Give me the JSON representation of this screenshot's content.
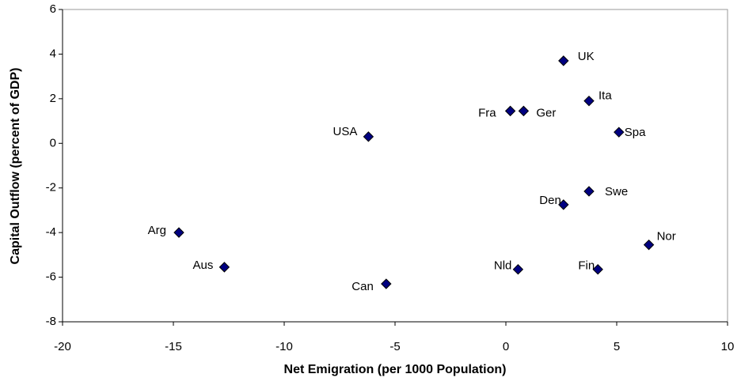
{
  "chart_data": {
    "type": "scatter",
    "xlabel": "Net Emigration (per 1000 Population)",
    "ylabel": "Capital Outflow (percent of GDP)",
    "labels": [
      "UK",
      "Ita",
      "Fra",
      "Ger",
      "Spa",
      "USA",
      "Swe",
      "Den",
      "Arg",
      "Nor",
      "Aus",
      "Nld",
      "Fin",
      "Can"
    ],
    "x": [
      2.6,
      3.75,
      0.2,
      0.8,
      5.1,
      -6.2,
      3.75,
      2.6,
      -14.75,
      6.45,
      -12.7,
      0.55,
      4.15,
      -5.4
    ],
    "values": [
      3.7,
      1.9,
      1.45,
      1.45,
      0.5,
      0.3,
      -2.15,
      -2.75,
      -4.0,
      -4.55,
      -5.55,
      -5.65,
      -5.65,
      -6.3
    ],
    "color": "#000080",
    "xlim": [
      -20,
      10
    ],
    "xticks": [
      -20,
      -15,
      -10,
      -5,
      0,
      5,
      10
    ],
    "ylim": [
      -8,
      6
    ],
    "yticks": [
      -8,
      -6,
      -4,
      -2,
      0,
      2,
      4,
      6
    ],
    "grid": false
  }
}
